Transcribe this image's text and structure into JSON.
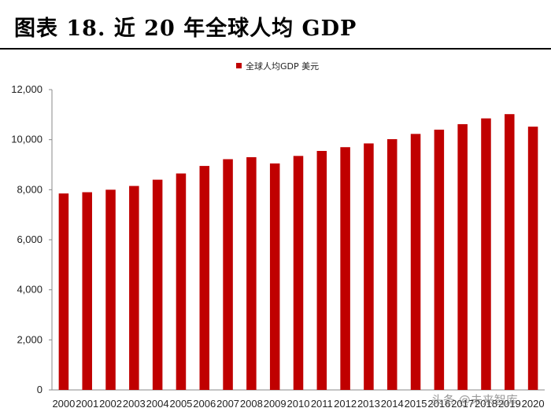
{
  "figure_title": "图表 18. 近 20 年全球人均 GDP",
  "watermark": "头条 @未来智库",
  "chart_data": {
    "type": "bar",
    "title": "",
    "xlabel": "",
    "ylabel": "",
    "legend": {
      "entries": [
        "全球人均GDP 美元"
      ],
      "position": "top-center"
    },
    "categories": [
      "2000",
      "2001",
      "2002",
      "2003",
      "2004",
      "2005",
      "2006",
      "2007",
      "2008",
      "2009",
      "2010",
      "2011",
      "2012",
      "2013",
      "2014",
      "2015",
      "2016",
      "2017",
      "2018",
      "2019",
      "2020"
    ],
    "series": [
      {
        "name": "全球人均GDP 美元",
        "color": "#C00000",
        "values": [
          7850,
          7900,
          8000,
          8150,
          8400,
          8650,
          8950,
          9220,
          9300,
          9050,
          9350,
          9550,
          9700,
          9850,
          10020,
          10230,
          10400,
          10620,
          10850,
          11020,
          10520
        ]
      }
    ],
    "ylim": [
      0,
      12000
    ],
    "yticks": [
      0,
      2000,
      4000,
      6000,
      8000,
      10000,
      12000
    ],
    "ytick_labels": [
      "0",
      "2,000",
      "4,000",
      "6,000",
      "8,000",
      "10,000",
      "12,000"
    ],
    "grid": false
  }
}
